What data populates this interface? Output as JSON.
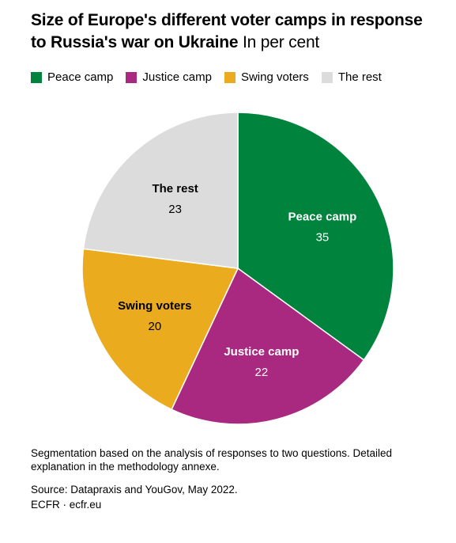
{
  "header": {
    "title": "Size of Europe's different voter camps in response to Russia's war on Ukraine",
    "unit": "In per cent"
  },
  "chart_data": {
    "type": "pie",
    "title": "Size of Europe's different voter camps in response to Russia's war on Ukraine",
    "subtitle": "In per cent",
    "legend_position": "top",
    "slices": [
      {
        "label": "Peace camp",
        "value": 35,
        "color": "#00843d",
        "label_color": "#ffffff"
      },
      {
        "label": "Justice camp",
        "value": 22,
        "color": "#a8297f",
        "label_color": "#ffffff"
      },
      {
        "label": "Swing voters",
        "value": 20,
        "color": "#eaab1f",
        "label_color": "#000000"
      },
      {
        "label": "The rest",
        "value": 23,
        "color": "#dcdcdc",
        "label_color": "#000000"
      }
    ]
  },
  "footer": {
    "note": "Segmentation based on the analysis of responses to two questions. Detailed explanation in the methodology annexe.",
    "source": "Source: Datapraxis and YouGov, May 2022.",
    "credit": "ECFR · ecfr.eu"
  }
}
